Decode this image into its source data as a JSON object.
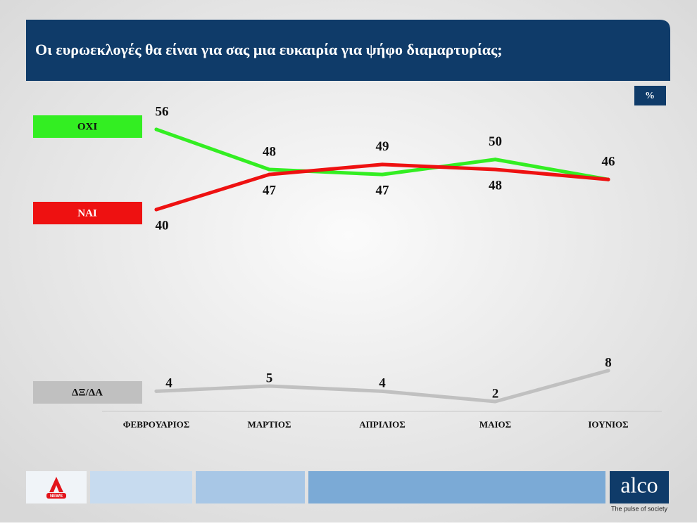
{
  "chart_data": {
    "type": "line",
    "title": "Οι ευρωεκλογές θα είναι για σας μια ευκαιρία για ψήφο διαμαρτυρίας;",
    "unit": "%",
    "categories": [
      "ΦΕΒΡΟΥΑΡΙΟΣ",
      "ΜΑΡΤΙΟΣ",
      "ΑΠΡΙΛΙΟΣ",
      "ΜΑΙΟΣ",
      "ΙΟΥΝΙΟΣ"
    ],
    "series": [
      {
        "name": "ΟΧΙ",
        "color": "#33ee22",
        "values": [
          56,
          48,
          47,
          50,
          46
        ]
      },
      {
        "name": "ΝΑΙ",
        "color": "#ee1111",
        "values": [
          40,
          47,
          49,
          48,
          46
        ]
      },
      {
        "name": "ΔΞ/ΔΑ",
        "color": "#c0c0c0",
        "values": [
          4,
          5,
          4,
          2,
          8
        ]
      }
    ]
  },
  "footer": {
    "logo": "alco",
    "tagline": "The pulse of society",
    "news": "NEWS"
  }
}
